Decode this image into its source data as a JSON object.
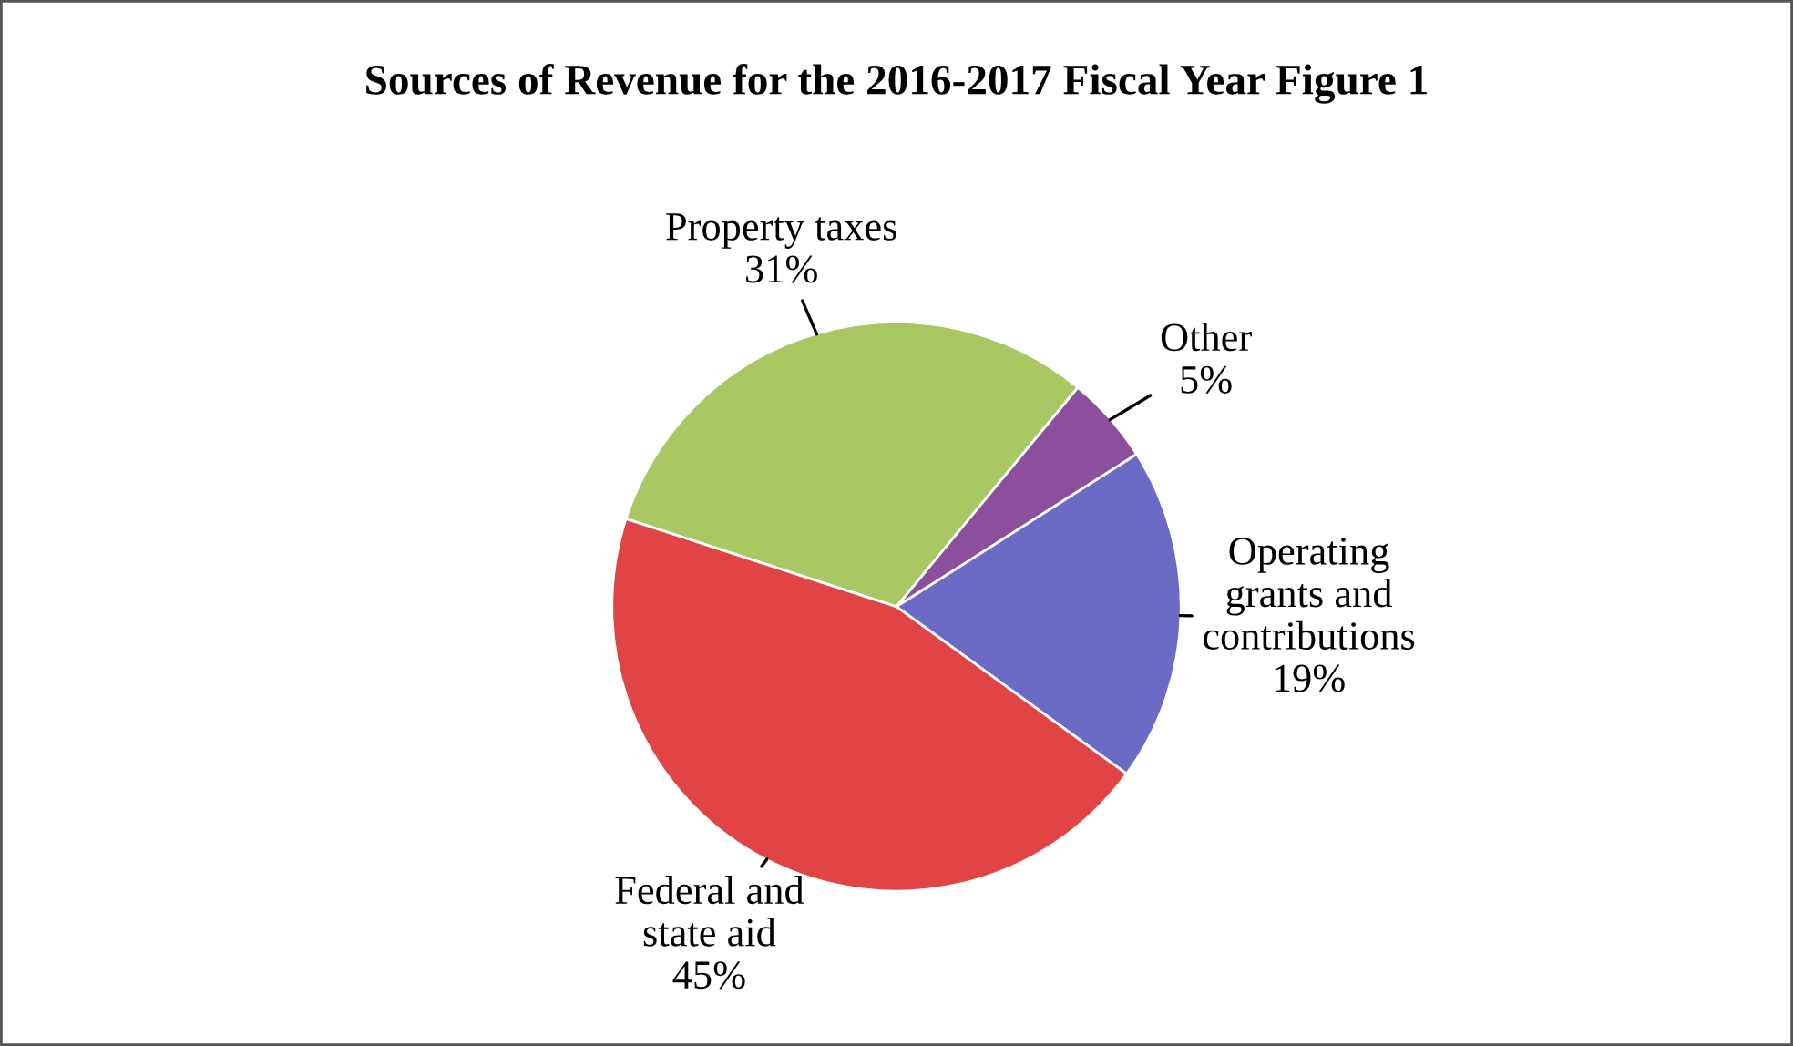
{
  "chart_data": {
    "type": "pie",
    "title": "Sources of Revenue for the 2016-2017 Fiscal Year Figure 1",
    "categories": [
      "Property taxes",
      "Other",
      "Operating\ngrants and\ncontributions",
      "Federal and\nstate aid"
    ],
    "values": [
      31,
      5,
      19,
      45
    ],
    "value_labels": [
      "31%",
      "5%",
      "19%",
      "45%"
    ],
    "colors": [
      "#a9c763",
      "#8c4f9e",
      "#6b6bc6",
      "#e04444"
    ],
    "legend": false
  }
}
